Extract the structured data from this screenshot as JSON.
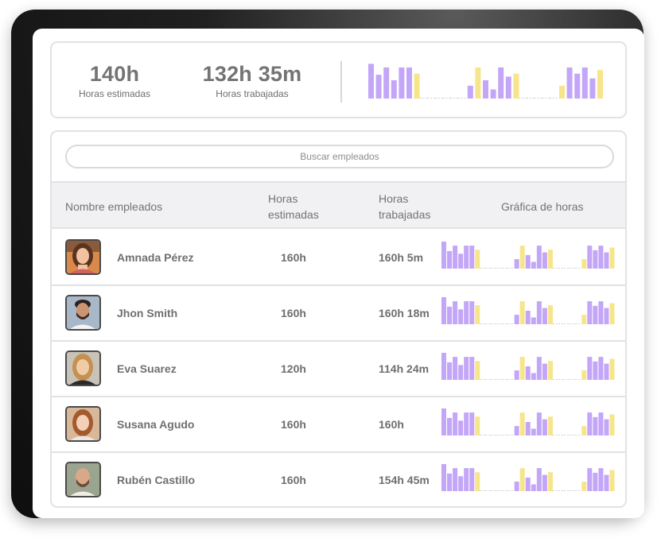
{
  "colors": {
    "accent_purple": "#c3a6f7",
    "accent_yellow": "#f7e58b",
    "baseline_dash": "#cfcfcf"
  },
  "summary": {
    "estimated_value": "140h",
    "estimated_label": "Horas estimadas",
    "worked_value": "132h 35m",
    "worked_label": "Horas trabajadas",
    "chart_data": {
      "type": "bar",
      "series": [
        {
          "values": [
            0.95,
            0.65,
            0.85,
            0.5,
            0.85,
            0.85,
            0.68,
            0,
            0,
            0,
            0,
            0,
            0,
            0.35,
            0.85,
            0.5,
            0.25,
            0.85,
            0.6,
            0.68,
            0,
            0,
            0,
            0,
            0,
            0.35,
            0.85,
            0.68,
            0.85,
            0.55,
            0.78
          ],
          "colors": [
            "p",
            "p",
            "p",
            "p",
            "p",
            "p",
            "y",
            "n",
            "n",
            "n",
            "n",
            "n",
            "n",
            "p",
            "y",
            "p",
            "p",
            "p",
            "p",
            "y",
            "n",
            "n",
            "n",
            "n",
            "n",
            "y",
            "p",
            "p",
            "p",
            "p",
            "y"
          ]
        }
      ]
    }
  },
  "search": {
    "placeholder": "Buscar empleados"
  },
  "table": {
    "headers": {
      "name": "Nombre empleados",
      "estimated_line1": "Horas",
      "estimated_line2": "estimadas",
      "worked_line1": "Horas",
      "worked_line2": "trabajadas",
      "chart": "Gráfica de horas"
    },
    "rows": [
      {
        "name": "Amnada Pérez",
        "estimated": "160h",
        "worked": "160h 5m",
        "avatar": "woman-avatar-orange"
      },
      {
        "name": "Jhon Smith",
        "estimated": "160h",
        "worked": "160h 18m",
        "avatar": "man-avatar-beard"
      },
      {
        "name": "Eva Suarez",
        "estimated": "120h",
        "worked": "114h 24m",
        "avatar": "woman-avatar-blonde"
      },
      {
        "name": "Susana Agudo",
        "estimated": "160h",
        "worked": "160h",
        "avatar": "woman-avatar-redhead"
      },
      {
        "name": "Rubén Castillo",
        "estimated": "160h",
        "worked": "154h 45m",
        "avatar": "man-avatar-bald"
      }
    ],
    "row_chart_data": {
      "type": "bar",
      "values": [
        1.0,
        0.65,
        0.85,
        0.55,
        0.85,
        0.85,
        0.7,
        0,
        0,
        0,
        0,
        0,
        0,
        0.35,
        0.85,
        0.5,
        0.25,
        0.85,
        0.6,
        0.7,
        0,
        0,
        0,
        0,
        0,
        0.35,
        0.85,
        0.68,
        0.85,
        0.6,
        0.78
      ],
      "colors": [
        "p",
        "p",
        "p",
        "p",
        "p",
        "p",
        "y",
        "n",
        "n",
        "n",
        "n",
        "n",
        "n",
        "p",
        "y",
        "p",
        "p",
        "p",
        "p",
        "y",
        "n",
        "n",
        "n",
        "n",
        "n",
        "y",
        "p",
        "p",
        "p",
        "p",
        "y"
      ]
    }
  }
}
